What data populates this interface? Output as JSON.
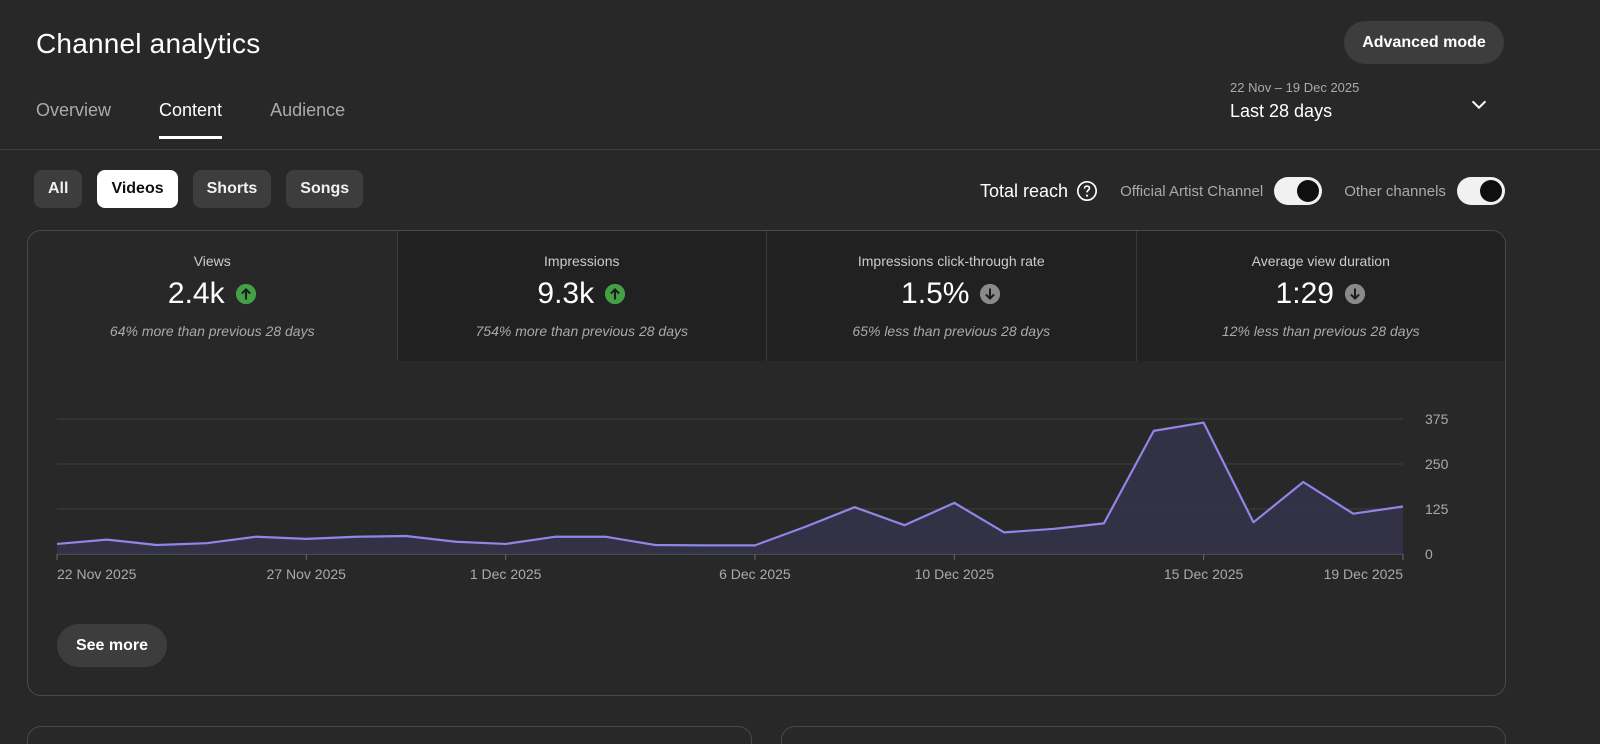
{
  "header": {
    "title": "Channel analytics",
    "advanced_mode_label": "Advanced mode"
  },
  "tabs": [
    {
      "label": "Overview",
      "active": false
    },
    {
      "label": "Content",
      "active": true
    },
    {
      "label": "Audience",
      "active": false
    }
  ],
  "date_picker": {
    "range": "22 Nov – 19 Dec 2025",
    "label": "Last 28 days",
    "icon": "chevron-down-icon"
  },
  "filters": [
    {
      "label": "All",
      "active": false
    },
    {
      "label": "Videos",
      "active": true
    },
    {
      "label": "Shorts",
      "active": false
    },
    {
      "label": "Songs",
      "active": false
    }
  ],
  "reach": {
    "label": "Total reach",
    "help_icon": "help-icon",
    "toggles": [
      {
        "label": "Official Artist Channel",
        "on": true
      },
      {
        "label": "Other channels",
        "on": true
      }
    ]
  },
  "metrics": [
    {
      "label": "Views",
      "value": "2.4k",
      "trend": "up",
      "change": "64% more than previous 28 days"
    },
    {
      "label": "Impressions",
      "value": "9.3k",
      "trend": "up",
      "change": "754% more than previous 28 days"
    },
    {
      "label": "Impressions click-through rate",
      "value": "1.5%",
      "trend": "down",
      "change": "65% less than previous 28 days"
    },
    {
      "label": "Average view duration",
      "value": "1:29",
      "trend": "down",
      "change": "12% less than previous 28 days"
    }
  ],
  "colors": {
    "up": "#43a047",
    "down": "#8a8a8a",
    "line": "#8f86e8",
    "fill": "#34324a"
  },
  "chart_data": {
    "type": "area",
    "x": [
      "2025-11-22",
      "2025-11-23",
      "2025-11-24",
      "2025-11-25",
      "2025-11-26",
      "2025-11-27",
      "2025-11-28",
      "2025-11-29",
      "2025-11-30",
      "2025-12-01",
      "2025-12-02",
      "2025-12-03",
      "2025-12-04",
      "2025-12-05",
      "2025-12-06",
      "2025-12-07",
      "2025-12-08",
      "2025-12-09",
      "2025-12-10",
      "2025-12-11",
      "2025-12-12",
      "2025-12-13",
      "2025-12-14",
      "2025-12-15",
      "2025-12-16",
      "2025-12-17",
      "2025-12-18",
      "2025-12-19"
    ],
    "values": [
      28,
      40,
      25,
      30,
      48,
      42,
      48,
      50,
      34,
      28,
      48,
      48,
      25,
      24,
      24,
      75,
      130,
      80,
      142,
      60,
      70,
      85,
      342,
      365,
      88,
      200,
      112,
      132
    ],
    "xticks": [
      {
        "index": 0,
        "label": "22 Nov 2025"
      },
      {
        "index": 5,
        "label": "27 Nov 2025"
      },
      {
        "index": 9,
        "label": "1 Dec 2025"
      },
      {
        "index": 14,
        "label": "6 Dec 2025"
      },
      {
        "index": 18,
        "label": "10 Dec 2025"
      },
      {
        "index": 23,
        "label": "15 Dec 2025"
      },
      {
        "index": 27,
        "label": "19 Dec 2025"
      }
    ],
    "yticks": [
      0,
      125,
      250,
      375
    ],
    "ylim": [
      0,
      375
    ],
    "grid": true
  },
  "see_more_label": "See more"
}
